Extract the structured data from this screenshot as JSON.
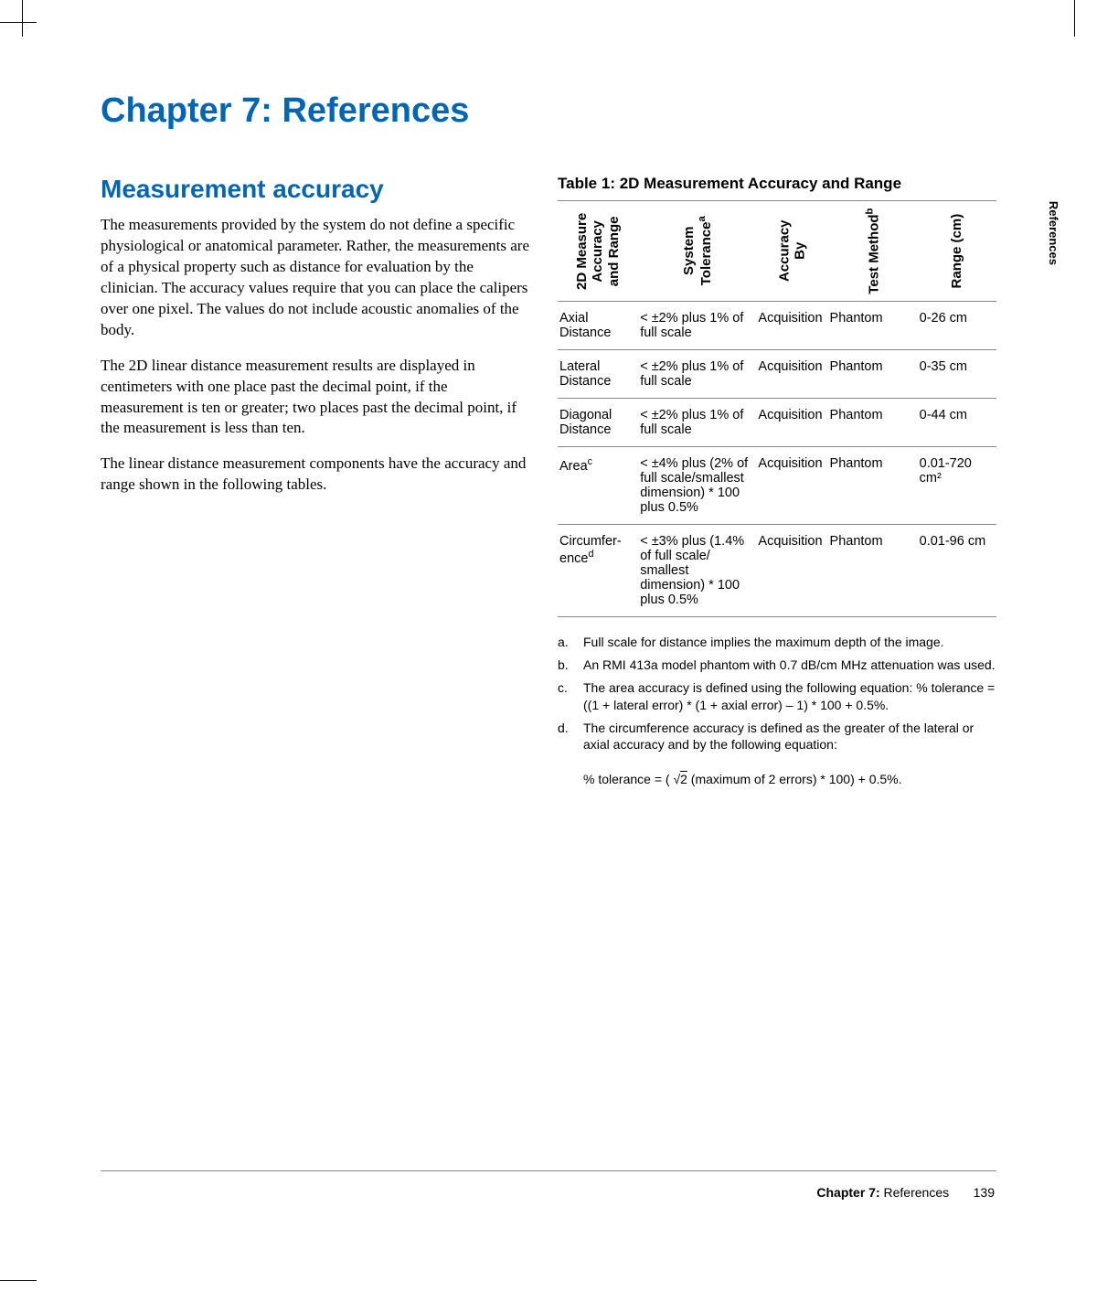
{
  "chapter": {
    "title": "Chapter 7: References"
  },
  "section": {
    "title": "Measurement accuracy"
  },
  "paragraphs": {
    "p1": "The measurements provided by the system do not define a specific physiological or anatomical parameter. Rather, the measurements are of a physical property such as distance for evaluation by the clinician. The accuracy values require that you can place the calipers over one pixel. The values do not include acoustic anomalies of the body.",
    "p2": "The 2D linear distance measurement results are displayed in centimeters with one place past the decimal point, if the measurement is ten or greater; two places past the decimal point, if the measurement is less than ten.",
    "p3": "The linear distance measurement components have the accuracy and range shown in the following tables."
  },
  "table": {
    "caption": "Table 1: 2D Measurement Accuracy and Range",
    "headers": {
      "h1": "2D Measure Accuracy and Range",
      "h2a": "System",
      "h2b": "Tolerance",
      "h3a": "Accuracy",
      "h3b": "By",
      "h4": "Test Method",
      "h5": "Range (cm)"
    },
    "rows": [
      {
        "c1": "Axial Distance",
        "c2": "< ±2% plus 1% of full scale",
        "c3": "Acquisition",
        "c4": "Phantom",
        "c5": "0-26 cm"
      },
      {
        "c1": "Lateral Distance",
        "c2": "< ±2% plus 1% of full scale",
        "c3": "Acquisition",
        "c4": "Phantom",
        "c5": "0-35 cm"
      },
      {
        "c1": "Diagonal Distance",
        "c2": "< ±2% plus 1% of full scale",
        "c3": "Acquisition",
        "c4": "Phantom",
        "c5": "0-44 cm"
      },
      {
        "c1a": "Area",
        "c1sup": "c",
        "c2": "< ±4% plus (2% of full scale/smallest dimension) * 100 plus 0.5%",
        "c3": "Acquisition",
        "c4": "Phantom",
        "c5": "0.01-720 cm²"
      },
      {
        "c1a": "Circumfer-ence",
        "c1sup": "d",
        "c2": "< ±3% plus (1.4% of full scale/ smallest dimension) * 100 plus 0.5%",
        "c3": "Acquisition",
        "c4": "Phantom",
        "c5": "0.01-96 cm"
      }
    ]
  },
  "footnotes": {
    "a": "Full scale for distance implies the maximum depth of the image.",
    "b": "An RMI 413a model phantom with 0.7 dB/cm MHz attenuation was used.",
    "c": "The area accuracy is defined using the following equation: % tolerance = ((1 + lateral error) * (1 + axial error) – 1) * 100 + 0.5%.",
    "d1": "The circumference accuracy is defined as the greater of the lateral or axial accuracy and by the following equation:",
    "d2a": "% tolerance = ( ",
    "d2root": "2",
    "d2b": "  (maximum of 2 errors) * 100) + 0.5%."
  },
  "sidetab": "References",
  "footer": {
    "chapter": "Chapter 7:",
    "label": "References",
    "page": "139"
  }
}
